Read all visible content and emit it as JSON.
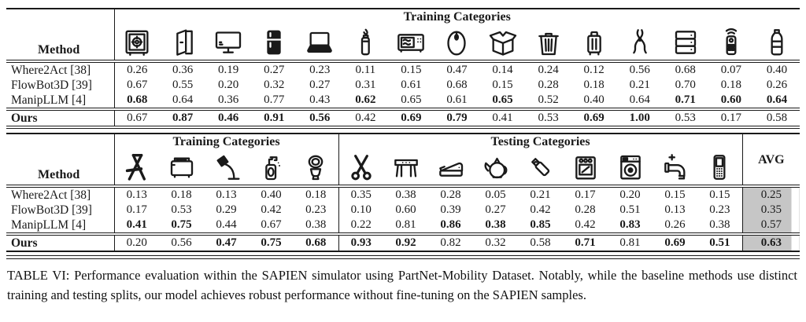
{
  "colors": {
    "avg_highlight": "#c6c6c6",
    "text": "#1a1a1a"
  },
  "top_table": {
    "method_header": "Method",
    "group_header": "Training Categories",
    "columns": [
      "safe",
      "door",
      "display",
      "refrigerator",
      "laptop",
      "lighter",
      "microwave",
      "mouse",
      "box",
      "trash-can",
      "suitcase",
      "pliers",
      "drawer-cabinet",
      "remote",
      "bottle"
    ],
    "rows": [
      {
        "label": "Where2Act [38]",
        "bold_label": false,
        "values": [
          "0.26",
          "0.36",
          "0.19",
          "0.27",
          "0.23",
          "0.11",
          "0.15",
          "0.47",
          "0.14",
          "0.24",
          "0.12",
          "0.56",
          "0.68",
          "0.07",
          "0.40"
        ],
        "bold": [
          0,
          0,
          0,
          0,
          0,
          0,
          0,
          0,
          0,
          0,
          0,
          0,
          0,
          0,
          0
        ]
      },
      {
        "label": "FlowBot3D [39]",
        "bold_label": false,
        "values": [
          "0.67",
          "0.55",
          "0.20",
          "0.32",
          "0.27",
          "0.31",
          "0.61",
          "0.68",
          "0.15",
          "0.28",
          "0.18",
          "0.21",
          "0.70",
          "0.18",
          "0.26"
        ],
        "bold": [
          0,
          0,
          0,
          0,
          0,
          0,
          0,
          0,
          0,
          0,
          0,
          0,
          0,
          0,
          0
        ]
      },
      {
        "label": "ManipLLM [4]",
        "bold_label": false,
        "values": [
          "0.68",
          "0.64",
          "0.36",
          "0.77",
          "0.43",
          "0.62",
          "0.65",
          "0.61",
          "0.65",
          "0.52",
          "0.40",
          "0.64",
          "0.71",
          "0.60",
          "0.64"
        ],
        "bold": [
          1,
          0,
          0,
          0,
          0,
          1,
          0,
          0,
          1,
          0,
          0,
          0,
          1,
          1,
          1
        ]
      },
      {
        "label": "Ours",
        "bold_label": true,
        "values": [
          "0.67",
          "0.87",
          "0.46",
          "0.91",
          "0.56",
          "0.42",
          "0.69",
          "0.79",
          "0.41",
          "0.53",
          "0.69",
          "1.00",
          "0.53",
          "0.17",
          "0.58"
        ],
        "bold": [
          0,
          1,
          1,
          1,
          1,
          0,
          1,
          1,
          0,
          0,
          1,
          1,
          0,
          0,
          0
        ]
      }
    ]
  },
  "bottom_table": {
    "method_header": "Method",
    "avg_header": "AVG",
    "groups": [
      {
        "label": "Training Categories",
        "columns": [
          "folding-chair",
          "toaster",
          "floor-lamp",
          "dispenser",
          "toilet"
        ]
      },
      {
        "label": "Testing Categories",
        "columns": [
          "scissors",
          "table",
          "stapler",
          "kettle",
          "usb-drive",
          "oven",
          "washing-machine",
          "faucet",
          "phone"
        ]
      }
    ],
    "rows": [
      {
        "label": "Where2Act [38]",
        "bold_label": false,
        "values": [
          "0.13",
          "0.18",
          "0.13",
          "0.40",
          "0.18",
          "0.35",
          "0.38",
          "0.28",
          "0.05",
          "0.21",
          "0.17",
          "0.20",
          "0.15",
          "0.15"
        ],
        "bold": [
          0,
          0,
          0,
          0,
          0,
          0,
          0,
          0,
          0,
          0,
          0,
          0,
          0,
          0
        ],
        "avg": "0.25",
        "avg_bold": false
      },
      {
        "label": "FlowBot3D [39]",
        "bold_label": false,
        "values": [
          "0.17",
          "0.53",
          "0.29",
          "0.42",
          "0.23",
          "0.10",
          "0.60",
          "0.39",
          "0.27",
          "0.42",
          "0.28",
          "0.51",
          "0.13",
          "0.23"
        ],
        "bold": [
          0,
          0,
          0,
          0,
          0,
          0,
          0,
          0,
          0,
          0,
          0,
          0,
          0,
          0
        ],
        "avg": "0.35",
        "avg_bold": false
      },
      {
        "label": "ManipLLM [4]",
        "bold_label": false,
        "values": [
          "0.41",
          "0.75",
          "0.44",
          "0.67",
          "0.38",
          "0.22",
          "0.81",
          "0.86",
          "0.38",
          "0.85",
          "0.42",
          "0.83",
          "0.26",
          "0.38"
        ],
        "bold": [
          1,
          1,
          0,
          0,
          0,
          0,
          0,
          1,
          1,
          1,
          0,
          1,
          0,
          0
        ],
        "avg": "0.57",
        "avg_bold": false
      },
      {
        "label": "Ours",
        "bold_label": true,
        "values": [
          "0.20",
          "0.56",
          "0.47",
          "0.75",
          "0.68",
          "0.93",
          "0.92",
          "0.82",
          "0.32",
          "0.58",
          "0.71",
          "0.81",
          "0.69",
          "0.51"
        ],
        "bold": [
          0,
          0,
          1,
          1,
          1,
          1,
          1,
          0,
          0,
          0,
          1,
          0,
          1,
          1
        ],
        "avg": "0.63",
        "avg_bold": true
      }
    ]
  },
  "caption": {
    "text": "TABLE VI: Performance evaluation within the SAPIEN simulator using PartNet-Mobility Dataset. Notably, while the baseline methods use distinct training and testing splits, our model achieves robust performance without fine-tuning on the SAPIEN samples."
  }
}
